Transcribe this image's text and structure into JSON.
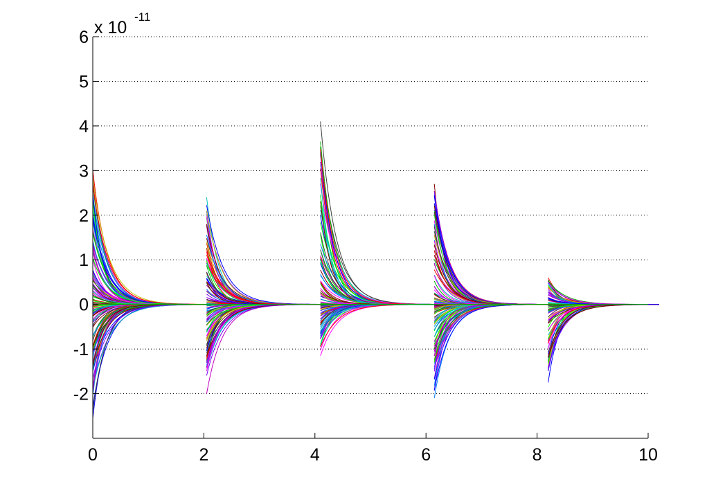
{
  "chart_data": {
    "type": "line",
    "title": "",
    "xlabel": "",
    "ylabel": "",
    "xlim": [
      0,
      10
    ],
    "ylim": [
      -3,
      6
    ],
    "y_exponent_label": "x 10",
    "y_exponent_power": "-11",
    "xticks": [
      "0",
      "2",
      "4",
      "6",
      "8",
      "10"
    ],
    "yticks": [
      "-2",
      "-1",
      "0",
      "1",
      "2",
      "3",
      "4",
      "5",
      "6"
    ],
    "grid": "horizontal-dotted",
    "legend": "none",
    "colors": [
      "#ff0000",
      "#0000ff",
      "#00aa00",
      "#00bfbf",
      "#bf00bf",
      "#bfbf00",
      "#404040",
      "#ff00ff",
      "#00ff00",
      "#800000",
      "#0080ff",
      "#8000ff"
    ],
    "decay_time_constant": 0.25,
    "bursts": [
      {
        "t0": 0.0,
        "max": 3.0,
        "min": -2.55,
        "curves": 130
      },
      {
        "t0": 2.05,
        "max": 2.4,
        "min": -2.0,
        "curves": 130
      },
      {
        "t0": 4.1,
        "max": 4.1,
        "min": -1.15,
        "curves": 130
      },
      {
        "t0": 6.15,
        "max": 2.7,
        "min": -2.1,
        "curves": 130
      },
      {
        "t0": 8.2,
        "max": 0.6,
        "min": -1.75,
        "curves": 110
      }
    ]
  }
}
